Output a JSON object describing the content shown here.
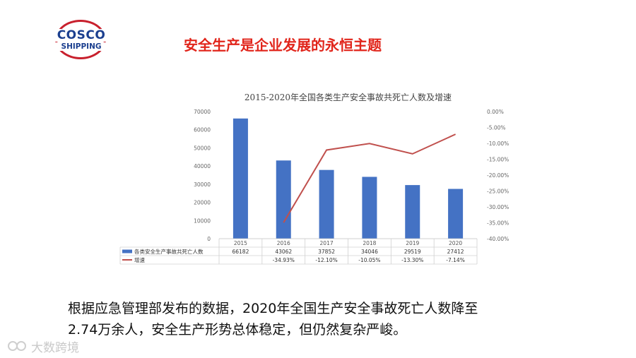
{
  "logo": {
    "line1": "COSCO",
    "line2": "SHIPPING"
  },
  "slide_title": "安全生产是企业发展的永恒主题",
  "chart_data": {
    "type": "bar",
    "title": "2015-2020年全国各类生产安全事故共死亡人数及增速",
    "categories": [
      "2015",
      "2016",
      "2017",
      "2018",
      "2019",
      "2020"
    ],
    "series": [
      {
        "name": "各类安全生产事故共死亡人数",
        "type": "bar",
        "axis": "left",
        "color": "#4472c4",
        "values": [
          66182,
          43062,
          37852,
          34046,
          29519,
          27412
        ],
        "labels": [
          "66182",
          "43062",
          "37852",
          "34046",
          "29519",
          "27412"
        ]
      },
      {
        "name": "增速",
        "type": "line",
        "axis": "right",
        "color": "#c0504d",
        "values": [
          null,
          -34.93,
          -12.1,
          -10.05,
          -13.3,
          -7.14
        ],
        "labels": [
          "",
          "-34.93%",
          "-12.10%",
          "-10.05%",
          "-13.30%",
          "-7.14%"
        ]
      }
    ],
    "y_left": {
      "range": [
        0,
        70000
      ],
      "ticks": [
        "0",
        "10000",
        "20000",
        "30000",
        "40000",
        "50000",
        "60000",
        "70000"
      ]
    },
    "y_right": {
      "range": [
        -40,
        0
      ],
      "ticks": [
        "0.00%",
        "-5.00%",
        "-10.00%",
        "-15.00%",
        "-20.00%",
        "-25.00%",
        "-30.00%",
        "-35.00%",
        "-40.00%"
      ]
    },
    "legend_placement": "data-table below chart",
    "grid": false
  },
  "body_text": {
    "line1": "根据应急管理部发布的数据，2020年全国生产安全事故死亡人数降至",
    "line2": "2.74万余人，安全生产形势总体稳定，但仍然复杂严峻。"
  },
  "watermark": {
    "text": "大数跨境"
  }
}
